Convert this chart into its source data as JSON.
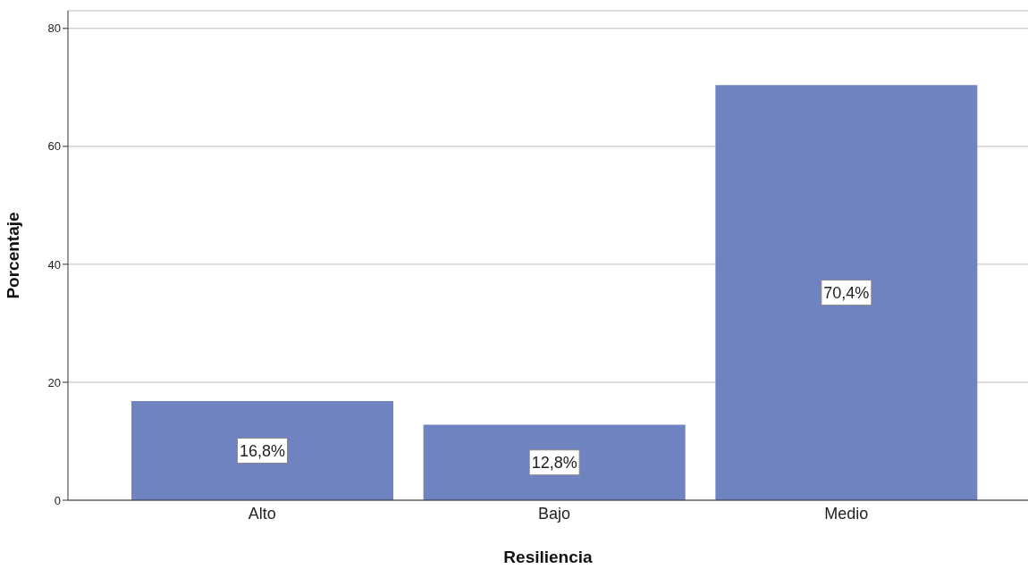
{
  "chart_data": {
    "type": "bar",
    "xlabel": "Resiliencia",
    "ylabel": "Porcentaje",
    "categories": [
      "Alto",
      "Bajo",
      "Medio"
    ],
    "values": [
      16.8,
      12.8,
      70.4
    ],
    "color": "#6f83c1",
    "value_labels": [
      "16,8%",
      "12,8%",
      "70,4%"
    ],
    "ylim": [
      0,
      83
    ],
    "yticks": [
      0,
      20,
      40,
      60,
      80
    ],
    "grid": "y"
  }
}
